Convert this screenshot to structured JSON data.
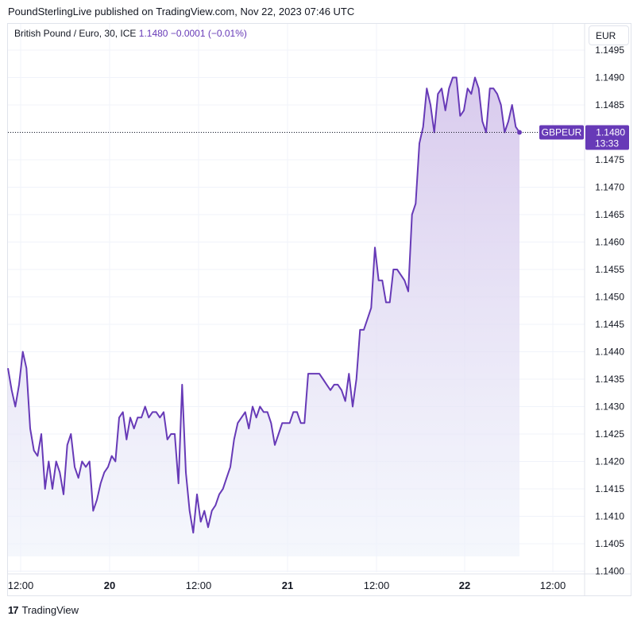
{
  "header": "PoundSterlingLive published on TradingView.com, Nov 22, 2023 07:46 UTC",
  "legend": {
    "symbol": "British Pound / Euro, 30, ICE",
    "last": "1.1480",
    "change": "−0.0001 (−0.01%)"
  },
  "currency_button": "EUR",
  "last_price_label": {
    "name": "GBPEUR",
    "price": "1.1480",
    "countdown": "13:33"
  },
  "footer": {
    "logo": "17",
    "brand": "TradingView"
  },
  "colors": {
    "line": "#673ab7",
    "fill_top": "#d6c7ec",
    "fill_bottom": "#eef2fb",
    "label_bg": "#673ab7",
    "grid": "#f0f3fa"
  },
  "chart_data": {
    "type": "area",
    "series": [
      {
        "values": [
          1.1437,
          1.1433,
          1.143,
          1.1434,
          1.144,
          1.1437,
          1.1426,
          1.1422,
          1.1421,
          1.1425,
          1.1415,
          1.142,
          1.1415,
          1.142,
          1.1418,
          1.1414,
          1.1423,
          1.1425,
          1.1419,
          1.1417,
          1.142,
          1.1419,
          1.142,
          1.1411,
          1.1413,
          1.1416,
          1.1418,
          1.1419,
          1.1421,
          1.142,
          1.1428,
          1.1429,
          1.1424,
          1.1428,
          1.1426,
          1.1428,
          1.1428,
          1.143,
          1.1428,
          1.1429,
          1.1429,
          1.1428,
          1.1429,
          1.1424,
          1.1425,
          1.1425,
          1.1416,
          1.1434,
          1.1418,
          1.1411,
          1.1407,
          1.1414,
          1.1409,
          1.1411,
          1.1408,
          1.1411,
          1.1412,
          1.1414,
          1.1415,
          1.1417,
          1.1419,
          1.1424,
          1.1427,
          1.1428,
          1.1429,
          1.1426,
          1.143,
          1.1428,
          1.143,
          1.1429,
          1.1429,
          1.1427,
          1.1423,
          1.1425,
          1.1427,
          1.1427,
          1.1427,
          1.1429,
          1.1429,
          1.1427,
          1.1427,
          1.1436,
          1.1436,
          1.1436,
          1.1436,
          1.1435,
          1.1434,
          1.1433,
          1.1434,
          1.1434,
          1.1433,
          1.1431,
          1.1436,
          1.143,
          1.1435,
          1.1444,
          1.1444,
          1.1446,
          1.1448,
          1.1459,
          1.1453,
          1.1453,
          1.1449,
          1.1449,
          1.1455,
          1.1455,
          1.1454,
          1.1453,
          1.1451,
          1.1465,
          1.1467,
          1.1478,
          1.1481,
          1.1488,
          1.1485,
          1.148,
          1.1487,
          1.1488,
          1.1484,
          1.1488,
          1.149,
          1.149,
          1.1483,
          1.1484,
          1.1488,
          1.1487,
          1.149,
          1.1488,
          1.1482,
          1.148,
          1.1488,
          1.1488,
          1.1487,
          1.1485,
          1.148,
          1.1482,
          1.1485,
          1.1481,
          1.148
        ]
      }
    ],
    "x_ticks": [
      "12:00",
      "20",
      "12:00",
      "21",
      "12:00",
      "22",
      "12:00"
    ],
    "y_ticks": [
      "1.1495",
      "1.1490",
      "1.1485",
      "1.1480",
      "1.1475",
      "1.1470",
      "1.1465",
      "1.1460",
      "1.1455",
      "1.1450",
      "1.1445",
      "1.1440",
      "1.1435",
      "1.1430",
      "1.1425",
      "1.1420",
      "1.1415",
      "1.1410",
      "1.1405",
      "1.1400"
    ],
    "ylim": [
      1.14,
      1.1495
    ],
    "grid": true
  }
}
